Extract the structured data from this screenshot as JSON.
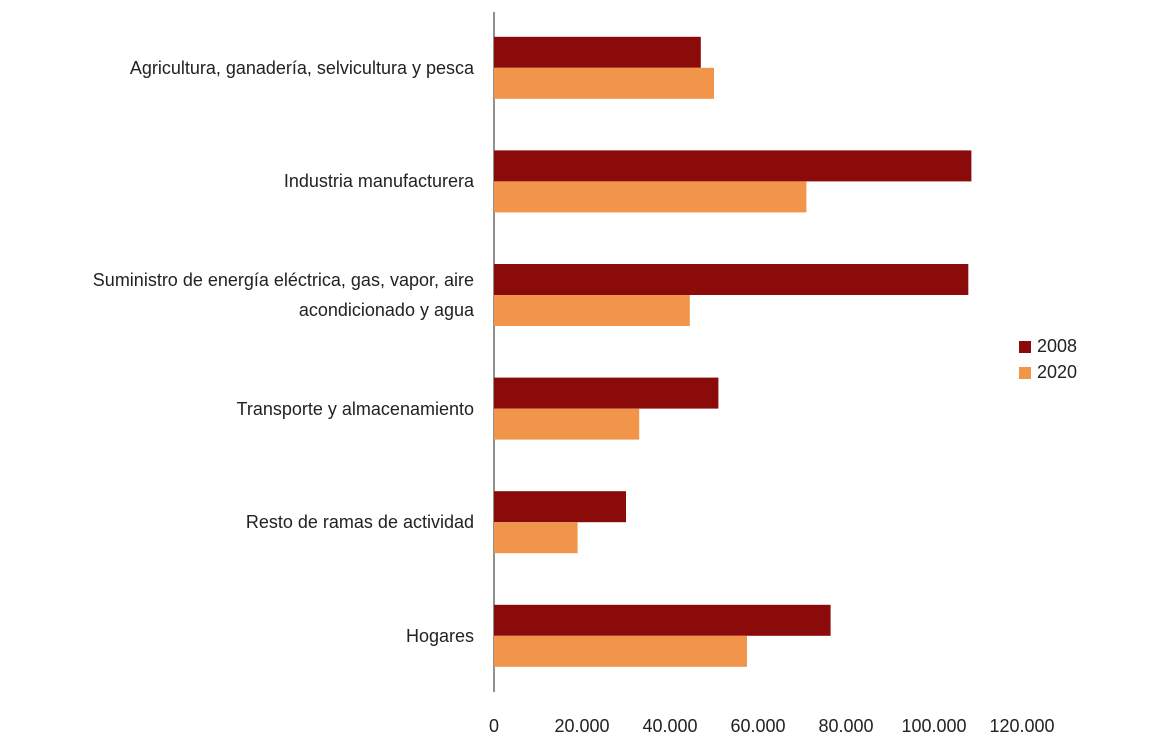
{
  "chart_data": {
    "type": "bar",
    "orientation": "horizontal",
    "categories": [
      "Agricultura, ganadería, selvicultura y pesca",
      "Industria manufacturera",
      "Suministro de energía eléctrica, gas, vapor, aire acondicionado y agua",
      "Transporte y almacenamiento",
      "Resto de ramas de actividad",
      "Hogares"
    ],
    "series": [
      {
        "name": "2008",
        "color": "#8b0a0a",
        "values": [
          47000,
          108500,
          107800,
          51000,
          30000,
          76500
        ]
      },
      {
        "name": "2020",
        "color": "#f0954a",
        "values": [
          50000,
          71000,
          44500,
          33000,
          19000,
          57500
        ]
      }
    ],
    "xlim": [
      0,
      120000
    ],
    "xticks": [
      0,
      {
        "value": 20000,
        "label": "20.000"
      },
      {
        "value": 40000,
        "label": "40.000"
      },
      {
        "value": 60000,
        "label": "60.000"
      },
      {
        "value": 80000,
        "label": "80.000"
      },
      {
        "value": 100000,
        "label": "100.000"
      },
      {
        "value": 120000,
        "label": "120.000"
      }
    ],
    "grid": false,
    "legend": "right"
  }
}
